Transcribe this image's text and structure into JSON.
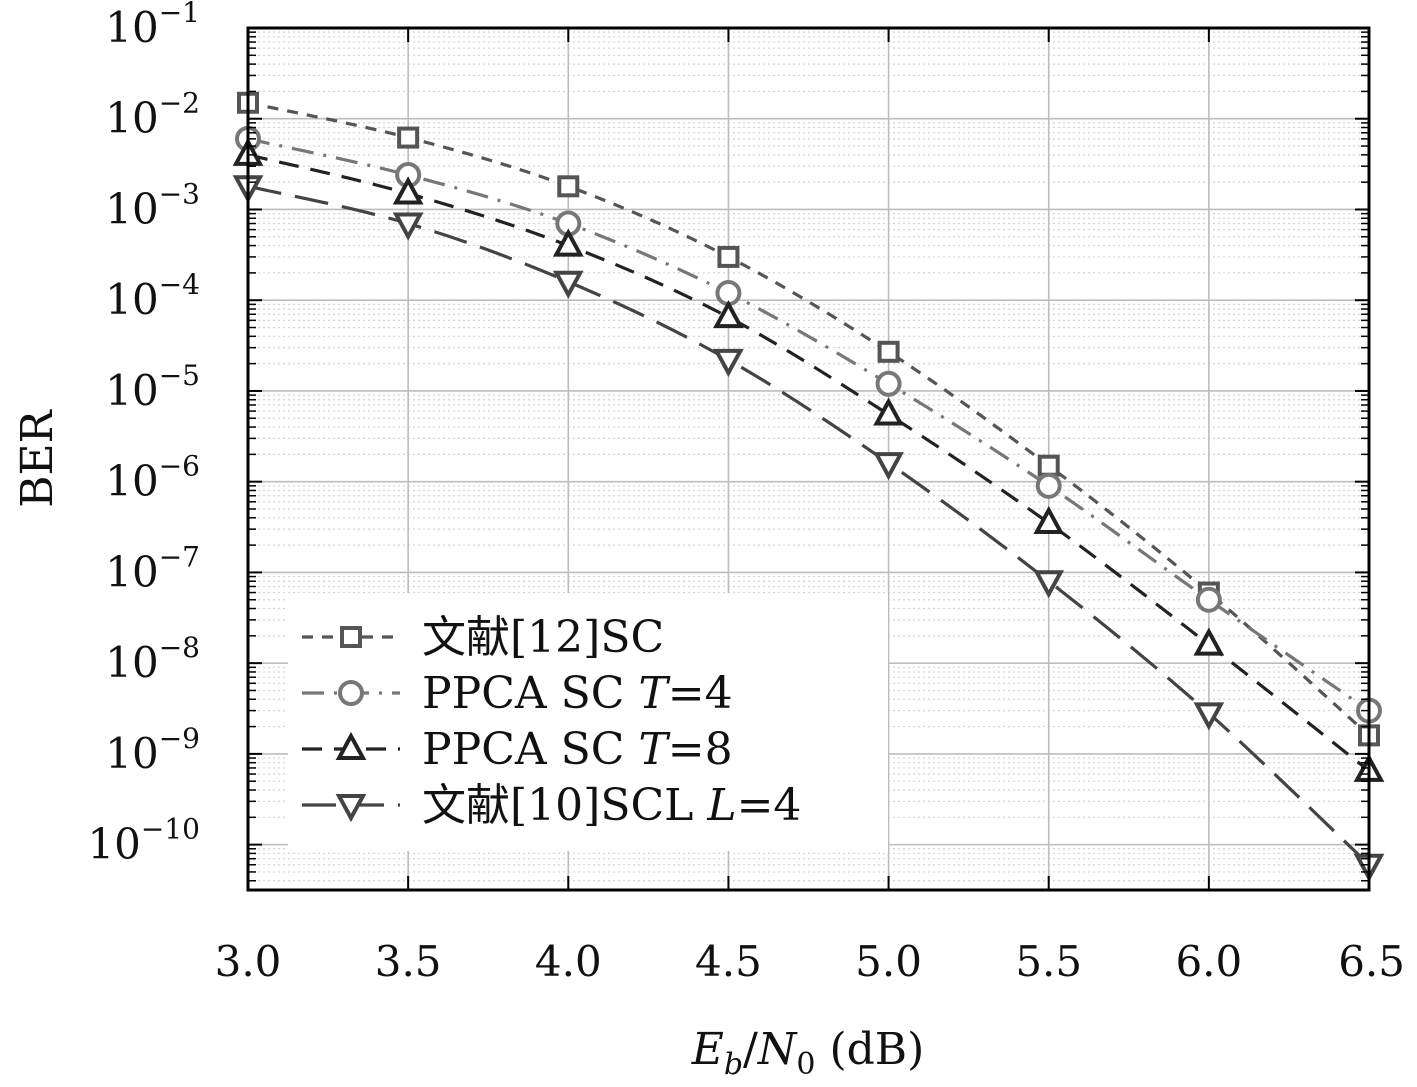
{
  "chart_data": {
    "type": "line",
    "xlabel": "E_b/N_0 (dB)",
    "ylabel": "BER",
    "yscale": "log",
    "xlim": [
      3.0,
      6.5
    ],
    "ylim": [
      -10.5,
      -1
    ],
    "x_ticks": [
      "3.0",
      "3.5",
      "4.0",
      "4.5",
      "5.0",
      "5.5",
      "6.0",
      "6.5"
    ],
    "y_ticks": [
      {
        "base": "10",
        "exp": "−1"
      },
      {
        "base": "10",
        "exp": "−2"
      },
      {
        "base": "10",
        "exp": "−3"
      },
      {
        "base": "10",
        "exp": "−4"
      },
      {
        "base": "10",
        "exp": "−5"
      },
      {
        "base": "10",
        "exp": "−6"
      },
      {
        "base": "10",
        "exp": "−7"
      },
      {
        "base": "10",
        "exp": "−8"
      },
      {
        "base": "10",
        "exp": "−9"
      },
      {
        "base": "10",
        "exp": "−10"
      }
    ],
    "grid": true,
    "legend_position": "bottom-left",
    "x": [
      3.0,
      3.5,
      4.0,
      4.5,
      5.0,
      5.5,
      6.0,
      6.5
    ],
    "series": [
      {
        "name": "文献[12]SC",
        "marker": "square",
        "dash": "short-dash",
        "color": "#555555",
        "values": [
          0.015,
          0.0062,
          0.0018,
          0.0003,
          2.7e-05,
          1.5e-06,
          6e-08,
          1.6e-09
        ]
      },
      {
        "name": "PPCA SC T=4",
        "marker": "circle",
        "dash": "dash-dot",
        "color": "#777777",
        "values": [
          0.006,
          0.0024,
          0.0007,
          0.00012,
          1.2e-05,
          9e-07,
          5e-08,
          3e-09
        ]
      },
      {
        "name": "PPCA SC T=8",
        "marker": "triangle-up",
        "dash": "dash",
        "color": "#222222",
        "values": [
          0.004,
          0.0015,
          0.0004,
          6.5e-05,
          5.5e-06,
          3.5e-07,
          1.6e-08,
          6.5e-10
        ]
      },
      {
        "name": "文献[10]SCL L=4",
        "marker": "triangle-down",
        "dash": "long-dash",
        "color": "#444444",
        "values": [
          0.0018,
          0.0007,
          0.00016,
          2.2e-05,
          1.6e-06,
          8e-08,
          2.8e-09,
          6e-11
        ]
      }
    ]
  },
  "legend": [
    {
      "prefix": "文献[12]SC",
      "var": "",
      "suffix": ""
    },
    {
      "prefix": "PPCA SC ",
      "var": "T",
      "suffix": "=4"
    },
    {
      "prefix": "PPCA SC ",
      "var": "T",
      "suffix": "=8"
    },
    {
      "prefix": "文献[10]SCL ",
      "var": "L",
      "suffix": "=4"
    }
  ],
  "axis_titles": {
    "x": {
      "e": "E",
      "b": "b",
      "slash": "/",
      "n": "N",
      "zero": "0",
      "unit": " (dB)"
    },
    "y": "BER"
  }
}
